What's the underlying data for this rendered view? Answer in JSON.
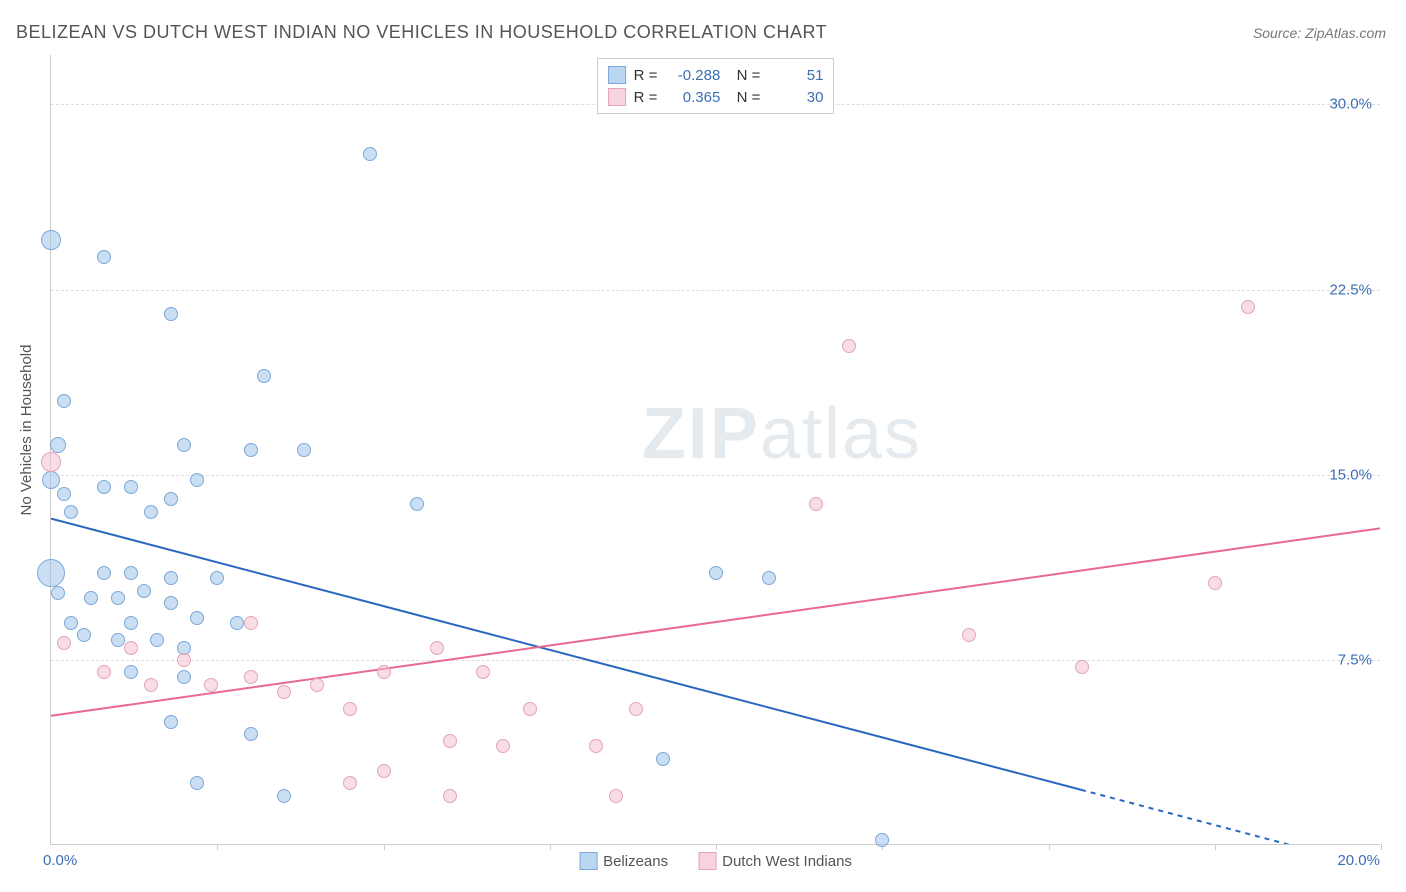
{
  "title": "BELIZEAN VS DUTCH WEST INDIAN NO VEHICLES IN HOUSEHOLD CORRELATION CHART",
  "source": "Source: ZipAtlas.com",
  "ylabel": "No Vehicles in Household",
  "watermark_bold": "ZIP",
  "watermark_light": "atlas",
  "chart": {
    "type": "scatter",
    "background_color": "#ffffff",
    "grid_color": "#dddddd",
    "axis_color": "#cccccc",
    "xlim": [
      0,
      20
    ],
    "ylim": [
      0,
      32
    ],
    "y_gridlines": [
      7.5,
      15.0,
      22.5,
      30.0
    ],
    "y_tick_labels": [
      "7.5%",
      "15.0%",
      "22.5%",
      "30.0%"
    ],
    "x_ticks": [
      2.5,
      5,
      7.5,
      10,
      12.5,
      15,
      17.5,
      20
    ],
    "x_origin_label": "0.0%",
    "x_end_label": "20.0%",
    "series": [
      {
        "name": "Belizeans",
        "color_fill": "#9ec5e9",
        "color_stroke": "#7ca8d8",
        "R": "-0.288",
        "N": "51",
        "trend": {
          "color": "#2968c0",
          "x1": 0,
          "y1": 13.2,
          "x2": 15.5,
          "y2": 2.2,
          "dash_x2": 20,
          "dash_y2": -1
        },
        "points": [
          {
            "x": 0.0,
            "y": 24.5,
            "r": 10
          },
          {
            "x": 0.8,
            "y": 23.8,
            "r": 7
          },
          {
            "x": 4.8,
            "y": 28.0,
            "r": 7
          },
          {
            "x": 0.2,
            "y": 18.0,
            "r": 7
          },
          {
            "x": 1.8,
            "y": 21.5,
            "r": 7
          },
          {
            "x": 3.2,
            "y": 19.0,
            "r": 7
          },
          {
            "x": 0.1,
            "y": 16.2,
            "r": 8
          },
          {
            "x": 2.0,
            "y": 16.2,
            "r": 7
          },
          {
            "x": 3.0,
            "y": 16.0,
            "r": 7
          },
          {
            "x": 3.8,
            "y": 16.0,
            "r": 7
          },
          {
            "x": 0.0,
            "y": 14.8,
            "r": 9
          },
          {
            "x": 0.8,
            "y": 14.5,
            "r": 7
          },
          {
            "x": 0.2,
            "y": 14.2,
            "r": 7
          },
          {
            "x": 1.2,
            "y": 14.5,
            "r": 7
          },
          {
            "x": 2.2,
            "y": 14.8,
            "r": 7
          },
          {
            "x": 1.8,
            "y": 14.0,
            "r": 7
          },
          {
            "x": 0.3,
            "y": 13.5,
            "r": 7
          },
          {
            "x": 1.5,
            "y": 13.5,
            "r": 7
          },
          {
            "x": 5.5,
            "y": 13.8,
            "r": 7
          },
          {
            "x": 0.0,
            "y": 11.0,
            "r": 14
          },
          {
            "x": 0.8,
            "y": 11.0,
            "r": 7
          },
          {
            "x": 1.2,
            "y": 11.0,
            "r": 7
          },
          {
            "x": 1.8,
            "y": 10.8,
            "r": 7
          },
          {
            "x": 1.4,
            "y": 10.3,
            "r": 7
          },
          {
            "x": 2.5,
            "y": 10.8,
            "r": 7
          },
          {
            "x": 0.1,
            "y": 10.2,
            "r": 7
          },
          {
            "x": 0.6,
            "y": 10.0,
            "r": 7
          },
          {
            "x": 1.0,
            "y": 10.0,
            "r": 7
          },
          {
            "x": 1.8,
            "y": 9.8,
            "r": 7
          },
          {
            "x": 0.3,
            "y": 9.0,
            "r": 7
          },
          {
            "x": 1.2,
            "y": 9.0,
            "r": 7
          },
          {
            "x": 2.2,
            "y": 9.2,
            "r": 7
          },
          {
            "x": 2.8,
            "y": 9.0,
            "r": 7
          },
          {
            "x": 0.5,
            "y": 8.5,
            "r": 7
          },
          {
            "x": 1.0,
            "y": 8.3,
            "r": 7
          },
          {
            "x": 1.6,
            "y": 8.3,
            "r": 7
          },
          {
            "x": 2.0,
            "y": 8.0,
            "r": 7
          },
          {
            "x": 10.0,
            "y": 11.0,
            "r": 7
          },
          {
            "x": 10.8,
            "y": 10.8,
            "r": 7
          },
          {
            "x": 1.2,
            "y": 7.0,
            "r": 7
          },
          {
            "x": 2.0,
            "y": 6.8,
            "r": 7
          },
          {
            "x": 1.8,
            "y": 5.0,
            "r": 7
          },
          {
            "x": 3.0,
            "y": 4.5,
            "r": 7
          },
          {
            "x": 2.2,
            "y": 2.5,
            "r": 7
          },
          {
            "x": 3.5,
            "y": 2.0,
            "r": 7
          },
          {
            "x": 9.2,
            "y": 3.5,
            "r": 7
          },
          {
            "x": 12.5,
            "y": 0.2,
            "r": 7
          }
        ]
      },
      {
        "name": "Dutch West Indians",
        "color_fill": "#f4c1ce",
        "color_stroke": "#e3a5b8",
        "R": "0.365",
        "N": "30",
        "trend": {
          "color": "#e86a8f",
          "x1": 0,
          "y1": 5.2,
          "x2": 20,
          "y2": 12.8
        },
        "points": [
          {
            "x": 0.0,
            "y": 15.5,
            "r": 10
          },
          {
            "x": 12.0,
            "y": 20.2,
            "r": 7
          },
          {
            "x": 18.0,
            "y": 21.8,
            "r": 7
          },
          {
            "x": 11.5,
            "y": 13.8,
            "r": 7
          },
          {
            "x": 17.5,
            "y": 10.6,
            "r": 7
          },
          {
            "x": 13.8,
            "y": 8.5,
            "r": 7
          },
          {
            "x": 15.5,
            "y": 7.2,
            "r": 7
          },
          {
            "x": 0.2,
            "y": 8.2,
            "r": 7
          },
          {
            "x": 0.8,
            "y": 7.0,
            "r": 7
          },
          {
            "x": 1.2,
            "y": 8.0,
            "r": 7
          },
          {
            "x": 2.0,
            "y": 7.5,
            "r": 7
          },
          {
            "x": 1.5,
            "y": 6.5,
            "r": 7
          },
          {
            "x": 2.4,
            "y": 6.5,
            "r": 7
          },
          {
            "x": 3.0,
            "y": 6.8,
            "r": 7
          },
          {
            "x": 3.5,
            "y": 6.2,
            "r": 7
          },
          {
            "x": 4.0,
            "y": 6.5,
            "r": 7
          },
          {
            "x": 3.0,
            "y": 9.0,
            "r": 7
          },
          {
            "x": 4.5,
            "y": 5.5,
            "r": 7
          },
          {
            "x": 5.0,
            "y": 7.0,
            "r": 7
          },
          {
            "x": 5.8,
            "y": 8.0,
            "r": 7
          },
          {
            "x": 6.5,
            "y": 7.0,
            "r": 7
          },
          {
            "x": 7.2,
            "y": 5.5,
            "r": 7
          },
          {
            "x": 8.8,
            "y": 5.5,
            "r": 7
          },
          {
            "x": 5.0,
            "y": 3.0,
            "r": 7
          },
          {
            "x": 6.0,
            "y": 4.2,
            "r": 7
          },
          {
            "x": 6.8,
            "y": 4.0,
            "r": 7
          },
          {
            "x": 8.2,
            "y": 4.0,
            "r": 7
          },
          {
            "x": 8.5,
            "y": 2.0,
            "r": 7
          },
          {
            "x": 4.5,
            "y": 2.5,
            "r": 7
          },
          {
            "x": 6.0,
            "y": 2.0,
            "r": 7
          }
        ]
      }
    ]
  },
  "legend": {
    "series1_label": "Belizeans",
    "series2_label": "Dutch West Indians"
  }
}
